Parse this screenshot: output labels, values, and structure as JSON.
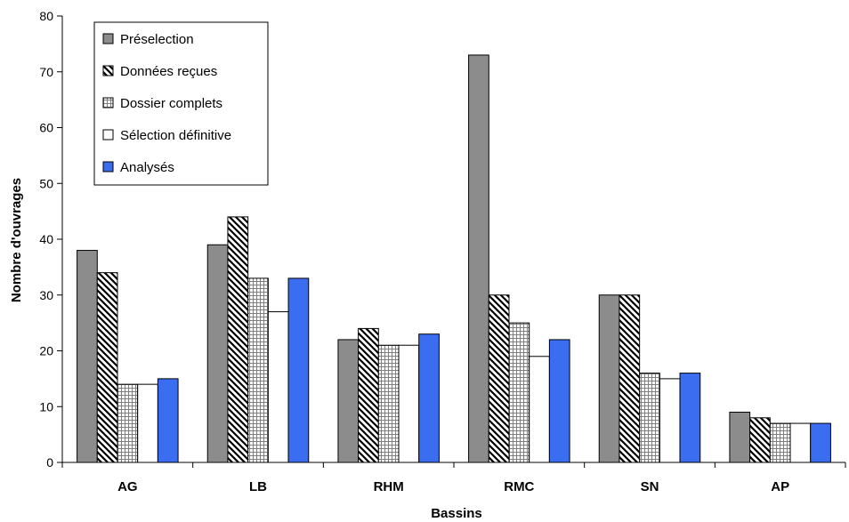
{
  "chart_data": {
    "type": "bar",
    "title": "",
    "xlabel": "Bassins",
    "ylabel": "Nombre d'ouvrages",
    "ylim": [
      0,
      80
    ],
    "yticks": [
      0,
      10,
      20,
      30,
      40,
      50,
      60,
      70,
      80
    ],
    "grid": false,
    "legend_position": "top-left",
    "categories": [
      "AG",
      "LB",
      "RHM",
      "RMC",
      "SN",
      "AP"
    ],
    "series": [
      {
        "name": "Préselection",
        "values": [
          38,
          39,
          22,
          73,
          30,
          9
        ],
        "fill": "gray",
        "color": "#8c8c8c"
      },
      {
        "name": "Données reçues",
        "values": [
          34,
          44,
          24,
          30,
          30,
          8
        ],
        "fill": "diagonal-hatch",
        "color": "#000000"
      },
      {
        "name": "Dossier complets",
        "values": [
          14,
          33,
          21,
          25,
          16,
          7
        ],
        "fill": "grid-hatch",
        "color": "#7f7f7f"
      },
      {
        "name": "Sélection définitive",
        "values": [
          14,
          27,
          21,
          19,
          15,
          7
        ],
        "fill": "white",
        "color": "#ffffff"
      },
      {
        "name": "Analysés",
        "values": [
          15,
          33,
          23,
          22,
          16,
          7
        ],
        "fill": "blue",
        "color": "#3b6df0"
      }
    ]
  }
}
